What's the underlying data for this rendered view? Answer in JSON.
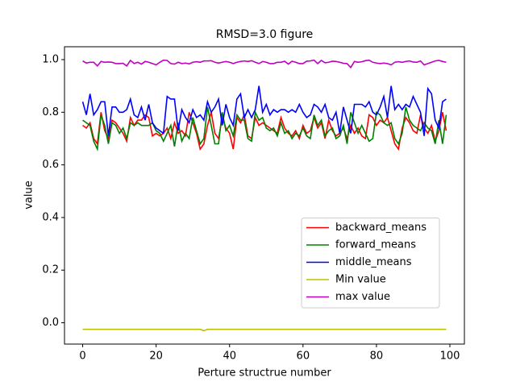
{
  "chart_data": {
    "type": "line",
    "title": "RMSD=3.0 figure",
    "xlabel": "Perture structrue number",
    "ylabel": "value",
    "x": [
      0,
      1,
      2,
      3,
      4,
      5,
      6,
      7,
      8,
      9,
      10,
      11,
      12,
      13,
      14,
      15,
      16,
      17,
      18,
      19,
      20,
      21,
      22,
      23,
      24,
      25,
      26,
      27,
      28,
      29,
      30,
      31,
      32,
      33,
      34,
      35,
      36,
      37,
      38,
      39,
      40,
      41,
      42,
      43,
      44,
      45,
      46,
      47,
      48,
      49,
      50,
      51,
      52,
      53,
      54,
      55,
      56,
      57,
      58,
      59,
      60,
      61,
      62,
      63,
      64,
      65,
      66,
      67,
      68,
      69,
      70,
      71,
      72,
      73,
      74,
      75,
      76,
      77,
      78,
      79,
      80,
      81,
      82,
      83,
      84,
      85,
      86,
      87,
      88,
      89,
      90,
      91,
      92,
      93,
      94,
      95,
      96,
      97,
      98,
      99
    ],
    "series": [
      {
        "name": "backward_means",
        "color": "#ff0000",
        "values": [
          0.75,
          0.74,
          0.76,
          0.7,
          0.68,
          0.8,
          0.73,
          0.7,
          0.77,
          0.76,
          0.74,
          0.72,
          0.69,
          0.78,
          0.75,
          0.77,
          0.77,
          0.79,
          0.78,
          0.71,
          0.72,
          0.71,
          0.72,
          0.74,
          0.7,
          0.76,
          0.72,
          0.73,
          0.71,
          0.8,
          0.76,
          0.72,
          0.66,
          0.68,
          0.75,
          0.8,
          0.72,
          0.7,
          0.78,
          0.74,
          0.72,
          0.66,
          0.78,
          0.76,
          0.79,
          0.71,
          0.7,
          0.78,
          0.75,
          0.76,
          0.75,
          0.74,
          0.73,
          0.72,
          0.78,
          0.74,
          0.72,
          0.71,
          0.73,
          0.7,
          0.75,
          0.72,
          0.73,
          0.78,
          0.74,
          0.76,
          0.7,
          0.77,
          0.73,
          0.71,
          0.72,
          0.74,
          0.7,
          0.75,
          0.72,
          0.74,
          0.71,
          0.7,
          0.79,
          0.78,
          0.75,
          0.77,
          0.76,
          0.78,
          0.73,
          0.68,
          0.66,
          0.74,
          0.78,
          0.76,
          0.73,
          0.72,
          0.79,
          0.74,
          0.72,
          0.75,
          0.69,
          0.73,
          0.8,
          0.73
        ]
      },
      {
        "name": "forward_means",
        "color": "#008000",
        "values": [
          0.77,
          0.76,
          0.75,
          0.69,
          0.66,
          0.79,
          0.75,
          0.68,
          0.76,
          0.75,
          0.72,
          0.74,
          0.7,
          0.76,
          0.75,
          0.76,
          0.75,
          0.75,
          0.75,
          0.76,
          0.73,
          0.72,
          0.69,
          0.72,
          0.75,
          0.67,
          0.76,
          0.69,
          0.72,
          0.7,
          0.78,
          0.73,
          0.68,
          0.7,
          0.82,
          0.75,
          0.68,
          0.68,
          0.8,
          0.73,
          0.75,
          0.71,
          0.79,
          0.77,
          0.77,
          0.7,
          0.69,
          0.8,
          0.77,
          0.78,
          0.74,
          0.73,
          0.74,
          0.71,
          0.76,
          0.72,
          0.73,
          0.7,
          0.72,
          0.71,
          0.74,
          0.71,
          0.7,
          0.79,
          0.75,
          0.77,
          0.71,
          0.73,
          0.74,
          0.7,
          0.71,
          0.75,
          0.68,
          0.8,
          0.76,
          0.72,
          0.75,
          0.72,
          0.69,
          0.7,
          0.8,
          0.79,
          0.76,
          0.75,
          0.76,
          0.7,
          0.68,
          0.72,
          0.82,
          0.77,
          0.75,
          0.74,
          0.73,
          0.76,
          0.74,
          0.73,
          0.68,
          0.77,
          0.68,
          0.79
        ]
      },
      {
        "name": "middle_means",
        "color": "#0000ff",
        "values": [
          0.84,
          0.79,
          0.87,
          0.79,
          0.81,
          0.84,
          0.84,
          0.71,
          0.82,
          0.82,
          0.8,
          0.8,
          0.81,
          0.85,
          0.79,
          0.78,
          0.82,
          0.77,
          0.83,
          0.76,
          0.74,
          0.73,
          0.72,
          0.86,
          0.85,
          0.85,
          0.73,
          0.81,
          0.78,
          0.76,
          0.81,
          0.78,
          0.79,
          0.77,
          0.84,
          0.8,
          0.82,
          0.85,
          0.75,
          0.83,
          0.78,
          0.75,
          0.85,
          0.87,
          0.78,
          0.81,
          0.78,
          0.81,
          0.9,
          0.8,
          0.83,
          0.79,
          0.81,
          0.8,
          0.81,
          0.81,
          0.8,
          0.81,
          0.8,
          0.83,
          0.8,
          0.78,
          0.79,
          0.83,
          0.82,
          0.8,
          0.83,
          0.78,
          0.77,
          0.8,
          0.72,
          0.82,
          0.77,
          0.72,
          0.83,
          0.83,
          0.83,
          0.82,
          0.84,
          0.8,
          0.79,
          0.82,
          0.86,
          0.78,
          0.9,
          0.81,
          0.83,
          0.81,
          0.83,
          0.82,
          0.86,
          0.83,
          0.8,
          0.71,
          0.89,
          0.87,
          0.77,
          0.74,
          0.84,
          0.85
        ]
      },
      {
        "name": "Min value",
        "color": "#bfbf00",
        "values": [
          -0.025,
          -0.025,
          -0.025,
          -0.025,
          -0.025,
          -0.025,
          -0.025,
          -0.025,
          -0.025,
          -0.025,
          -0.025,
          -0.025,
          -0.025,
          -0.025,
          -0.025,
          -0.025,
          -0.025,
          -0.025,
          -0.025,
          -0.025,
          -0.025,
          -0.025,
          -0.025,
          -0.025,
          -0.025,
          -0.025,
          -0.025,
          -0.025,
          -0.025,
          -0.025,
          -0.025,
          -0.025,
          -0.025,
          -0.03,
          -0.025,
          -0.025,
          -0.025,
          -0.025,
          -0.025,
          -0.025,
          -0.025,
          -0.025,
          -0.025,
          -0.025,
          -0.025,
          -0.025,
          -0.025,
          -0.025,
          -0.025,
          -0.025,
          -0.025,
          -0.025,
          -0.025,
          -0.025,
          -0.025,
          -0.025,
          -0.025,
          -0.025,
          -0.025,
          -0.025,
          -0.025,
          -0.025,
          -0.025,
          -0.025,
          -0.025,
          -0.025,
          -0.025,
          -0.025,
          -0.025,
          -0.025,
          -0.025,
          -0.025,
          -0.025,
          -0.025,
          -0.025,
          -0.025,
          -0.025,
          -0.025,
          -0.025,
          -0.025,
          -0.025,
          -0.025,
          -0.025,
          -0.025,
          -0.025,
          -0.025,
          -0.025,
          -0.025,
          -0.025,
          -0.025,
          -0.025,
          -0.025,
          -0.025,
          -0.025,
          -0.025,
          -0.025,
          -0.025,
          -0.025,
          -0.025,
          -0.025
        ]
      },
      {
        "name": "max value",
        "color": "#bf00bf",
        "values": [
          0.995,
          0.987,
          0.99,
          0.99,
          0.976,
          0.993,
          0.99,
          0.991,
          0.99,
          0.985,
          0.985,
          0.986,
          0.976,
          0.997,
          0.985,
          0.99,
          0.983,
          0.993,
          0.99,
          0.985,
          0.98,
          0.99,
          0.998,
          0.997,
          0.985,
          0.983,
          0.99,
          0.985,
          0.987,
          0.984,
          0.99,
          0.992,
          0.99,
          0.995,
          0.995,
          0.996,
          0.99,
          0.987,
          0.99,
          0.993,
          0.99,
          0.985,
          0.99,
          0.993,
          0.995,
          0.993,
          0.996,
          0.99,
          0.985,
          0.993,
          0.99,
          0.985,
          0.985,
          0.99,
          0.99,
          0.994,
          0.983,
          0.994,
          0.99,
          0.985,
          0.985,
          0.994,
          0.995,
          0.998,
          0.985,
          0.997,
          0.988,
          0.99,
          0.994,
          0.993,
          0.99,
          0.986,
          0.985,
          0.97,
          0.993,
          0.99,
          0.992,
          0.996,
          0.998,
          0.99,
          0.987,
          0.985,
          0.987,
          0.985,
          0.98,
          0.99,
          0.992,
          0.99,
          0.993,
          0.995,
          0.991,
          0.99,
          0.995,
          0.98,
          0.985,
          0.99,
          0.995,
          0.997,
          0.993,
          0.99
        ]
      }
    ],
    "xlim": [
      -4.95,
      103.95
    ],
    "ylim": [
      -0.081,
      1.049
    ],
    "xticks": [
      0,
      20,
      40,
      60,
      80,
      100
    ],
    "yticks": [
      {
        "value": 0,
        "label": "0.0"
      },
      0.2,
      0.4,
      0.6,
      0.8,
      {
        "value": 1,
        "label": "1.0"
      }
    ],
    "grid": false,
    "legend_loc": "lower right"
  }
}
